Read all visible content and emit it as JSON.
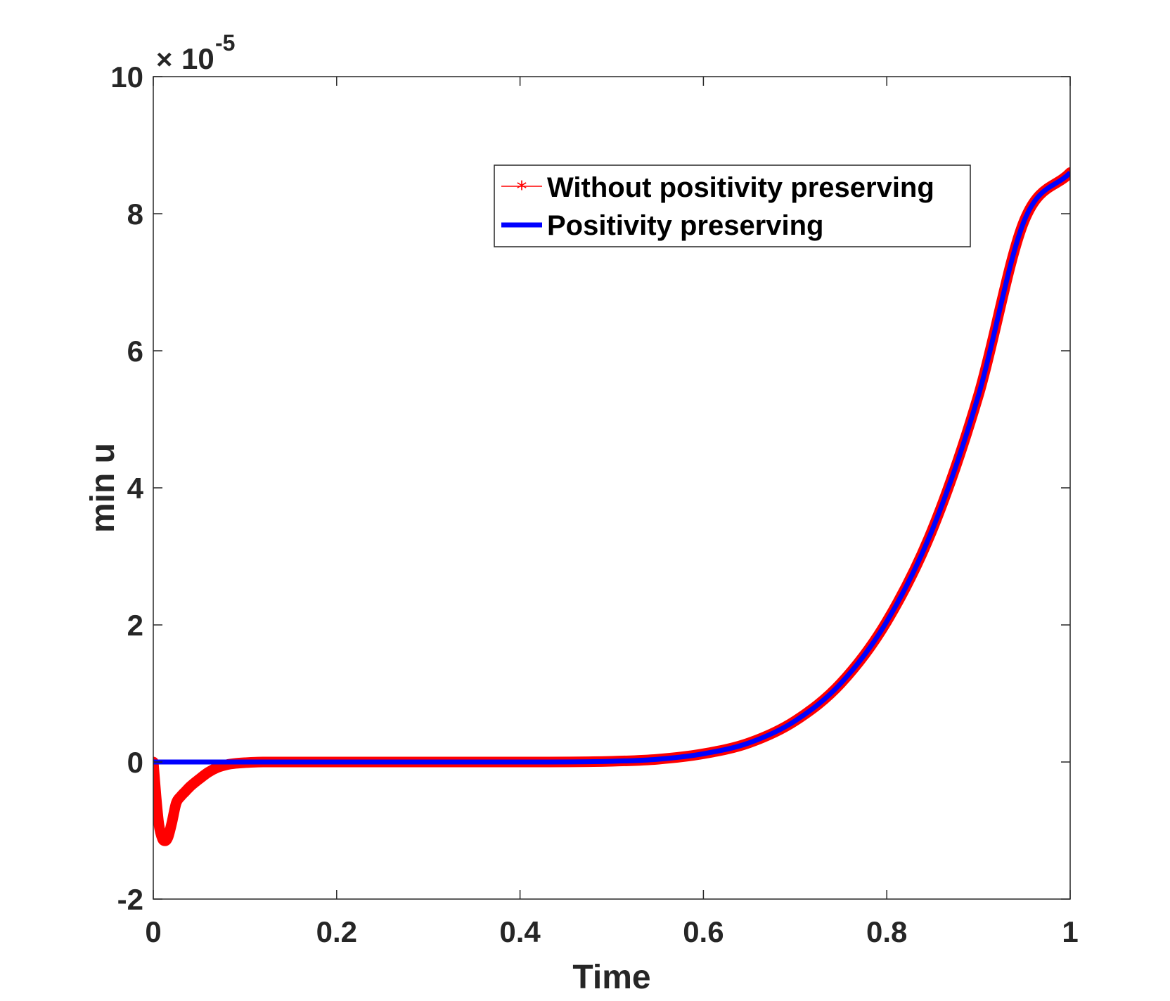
{
  "chart_data": {
    "type": "line",
    "xlabel": "Time",
    "ylabel": "min u",
    "xlim": [
      0,
      1
    ],
    "ylim": [
      -2,
      10
    ],
    "y_exponent_base": "10",
    "y_exponent_power": "-5",
    "x_ticks": [
      0,
      0.2,
      0.4,
      0.6,
      0.8,
      1
    ],
    "x_tick_labels": [
      "0",
      "0.2",
      "0.4",
      "0.6",
      "0.8",
      "1"
    ],
    "y_ticks": [
      -2,
      0,
      2,
      4,
      6,
      8,
      10
    ],
    "y_tick_labels": [
      "-2",
      "0",
      "2",
      "4",
      "6",
      "8",
      "10"
    ],
    "legend_position": "top-right",
    "series": [
      {
        "name": "Without positivity preserving",
        "color": "#ff0000",
        "marker": "asterisk",
        "x": [
          0,
          0.003,
          0.006,
          0.01,
          0.013,
          0.016,
          0.02,
          0.025,
          0.03,
          0.035,
          0.04,
          0.05,
          0.06,
          0.07,
          0.08,
          0.09,
          0.1,
          0.12,
          0.2,
          0.3,
          0.4,
          0.5,
          0.55,
          0.6,
          0.65,
          0.7,
          0.75,
          0.8,
          0.85,
          0.9,
          0.95,
          1.0
        ],
        "y": [
          0,
          -0.5,
          -0.9,
          -1.12,
          -1.15,
          -1.1,
          -0.9,
          -0.6,
          -0.5,
          -0.43,
          -0.36,
          -0.25,
          -0.15,
          -0.08,
          -0.04,
          -0.02,
          -0.01,
          0,
          0,
          0,
          0,
          0.01,
          0.04,
          0.12,
          0.28,
          0.6,
          1.15,
          2.05,
          3.4,
          5.35,
          7.9,
          8.6
        ]
      },
      {
        "name": "Positivity preserving",
        "color": "#0000ff",
        "marker": "none",
        "x": [
          0,
          0.1,
          0.2,
          0.3,
          0.4,
          0.5,
          0.55,
          0.6,
          0.65,
          0.7,
          0.75,
          0.8,
          0.85,
          0.9,
          0.95,
          1.0
        ],
        "y": [
          0,
          0,
          0,
          0,
          0,
          0.01,
          0.04,
          0.12,
          0.28,
          0.6,
          1.15,
          2.05,
          3.4,
          5.35,
          7.9,
          8.6
        ]
      }
    ]
  }
}
